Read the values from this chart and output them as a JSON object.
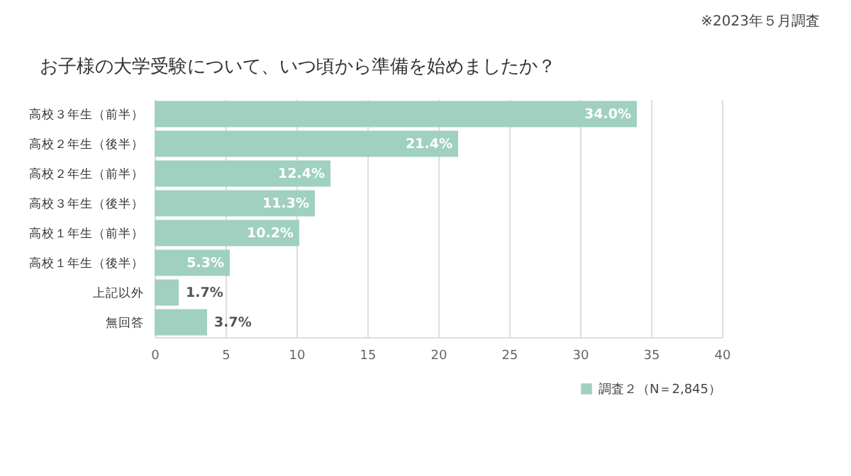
{
  "chart_data": {
    "type": "bar",
    "orientation": "horizontal",
    "title": "お子様の大学受験について、いつ頃から準備を始めましたか？",
    "annotations": [
      "※2023年５月調査"
    ],
    "categories": [
      "高校３年生（前半）",
      "高校２年生（後半）",
      "高校２年生（前半）",
      "高校３年生（後半）",
      "高校１年生（前半）",
      "高校１年生（後半）",
      "上記以外",
      "無回答"
    ],
    "series": [
      {
        "name": "調査２（N＝2,845）",
        "color": "#9fd0c0",
        "values": [
          34.0,
          21.4,
          12.4,
          11.3,
          10.2,
          5.3,
          1.7,
          3.7
        ],
        "value_labels": [
          "34.0%",
          "21.4%",
          "12.4%",
          "11.3%",
          "10.2%",
          "5.3%",
          "1.7%",
          "3.7%"
        ]
      }
    ],
    "xlim": [
      0,
      40
    ],
    "xticks": [
      0,
      5,
      10,
      15,
      20,
      25,
      30,
      35,
      40
    ],
    "grid": "x",
    "legend": "bottom right"
  }
}
